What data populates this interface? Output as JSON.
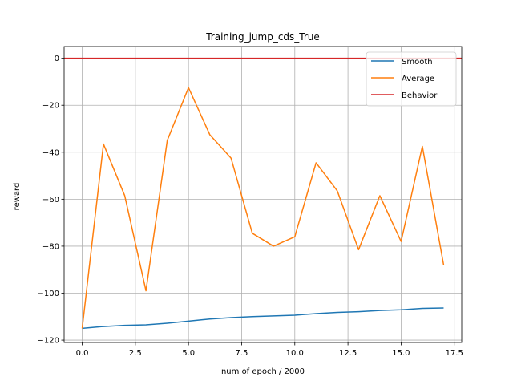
{
  "chart_data": {
    "type": "line",
    "title": "Training_jump_cds_True",
    "xlabel": "num of epoch / 2000",
    "ylabel": "reward",
    "xlim": [
      -0.85,
      17.85
    ],
    "ylim": [
      -121,
      5
    ],
    "xticks": [
      0.0,
      2.5,
      5.0,
      7.5,
      10.0,
      12.5,
      15.0,
      17.5
    ],
    "xtick_labels": [
      "0.0",
      "2.5",
      "5.0",
      "7.5",
      "10.0",
      "12.5",
      "15.0",
      "17.5"
    ],
    "yticks": [
      0,
      -20,
      -40,
      -60,
      -80,
      -100,
      -120
    ],
    "ytick_labels": [
      "0",
      "−20",
      "−40",
      "−60",
      "−80",
      "−100",
      "−120"
    ],
    "grid": true,
    "legend_position": "top-right",
    "x": [
      0,
      1,
      2,
      3,
      4,
      5,
      6,
      7,
      8,
      9,
      10,
      11,
      12,
      13,
      14,
      15,
      16,
      17
    ],
    "series": [
      {
        "name": "Smooth",
        "color": "#1f77b4",
        "values": [
          -115,
          -114.2,
          -113.7,
          -113.5,
          -112.8,
          -111.9,
          -111.0,
          -110.4,
          -110.0,
          -109.7,
          -109.4,
          -108.7,
          -108.2,
          -107.9,
          -107.4,
          -107.1,
          -106.5,
          -106.3
        ]
      },
      {
        "name": "Average",
        "color": "#ff7f0e",
        "values": [
          -115,
          -36.5,
          -58.5,
          -99,
          -35,
          -12.5,
          -32.5,
          -42.5,
          -74.5,
          -80,
          -76,
          -44.5,
          -56.5,
          -81.5,
          -58.5,
          -78,
          -37.5,
          -88
        ]
      },
      {
        "name": "Behavior",
        "color": "#d62728",
        "type": "hline",
        "y": 0
      }
    ]
  }
}
